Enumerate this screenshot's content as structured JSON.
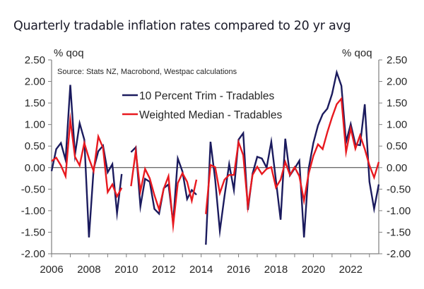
{
  "chart_data": {
    "type": "line",
    "title": "Quarterly tradable inflation rates compared to 20 yr avg",
    "source": "Source: Stats NZ, Macrobond, Westpac calculations",
    "ylabel_left": "% qoq",
    "ylabel_right": "% qoq",
    "xlabel": "",
    "ylim": [
      -2.0,
      2.5
    ],
    "xlim": [
      2006.0,
      2023.5
    ],
    "y_ticks": [
      2.5,
      2.0,
      1.5,
      1.0,
      0.5,
      0.0,
      -0.5,
      -1.0,
      -1.5,
      -2.0
    ],
    "y_tick_labels": [
      "2.50",
      "2.00",
      "1.50",
      "1.00",
      "0.50",
      "0.00",
      "-0.50",
      "-1.00",
      "-1.50",
      "-2.00"
    ],
    "x_tick_labels": [
      "2006",
      "2008",
      "2010",
      "2012",
      "2014",
      "2016",
      "2018",
      "2020",
      "2022"
    ],
    "x_tick_values": [
      2006,
      2008,
      2010,
      2012,
      2014,
      2016,
      2018,
      2020,
      2022
    ],
    "grid": false,
    "zero_line": true,
    "legend_position": "top-center",
    "x_start": 2006.0,
    "x_step": 0.25,
    "series": [
      {
        "name": "10 Percent Trim - Tradables",
        "color": "#1b1b5e",
        "values": [
          -0.08,
          0.43,
          0.57,
          0.18,
          1.92,
          0.3,
          1.03,
          0.65,
          -1.62,
          -0.03,
          0.38,
          0.51,
          -0.11,
          0.08,
          -1.06,
          -0.15,
          null,
          0.36,
          0.47,
          -0.9,
          -0.26,
          -0.33,
          -0.96,
          -1.07,
          -0.48,
          -0.39,
          -1.28,
          0.21,
          -0.09,
          -0.73,
          -0.52,
          -0.63,
          null,
          -1.79,
          0.6,
          -0.28,
          -1.47,
          -0.66,
          0.08,
          -0.52,
          0.65,
          0.8,
          -0.98,
          -0.14,
          0.25,
          0.21,
          0.0,
          0.6,
          -0.3,
          -1.21,
          0.67,
          -0.18,
          -0.02,
          0.16,
          -1.62,
          -0.02,
          0.57,
          0.98,
          1.24,
          1.37,
          1.71,
          2.21,
          1.9,
          0.59,
          1.01,
          0.54,
          0.52,
          1.47,
          -0.33,
          -0.96,
          -0.39
        ]
      },
      {
        "name": "Weighted Median - Tradables",
        "color": "#e8191f",
        "values": [
          0.15,
          0.23,
          0.05,
          -0.2,
          1.11,
          0.25,
          0.05,
          0.57,
          0.21,
          -0.08,
          0.72,
          0.46,
          -0.57,
          -0.39,
          -0.67,
          -0.47,
          null,
          -0.43,
          0.38,
          -0.55,
          -0.03,
          -0.25,
          -0.64,
          -0.97,
          -0.49,
          -0.2,
          -1.34,
          -0.36,
          -0.13,
          -0.33,
          -0.77,
          -0.28,
          null,
          -1.08,
          0.06,
          0.01,
          -0.59,
          -0.28,
          -0.17,
          -0.17,
          0.59,
          0.29,
          -0.9,
          -0.17,
          0.02,
          -0.15,
          -0.03,
          0.01,
          -0.46,
          -0.28,
          0.13,
          -0.17,
          0.01,
          -0.2,
          -0.77,
          -0.14,
          0.27,
          0.54,
          0.43,
          0.82,
          1.17,
          1.47,
          1.6,
          0.36,
          0.91,
          0.44,
          0.75,
          0.43,
          0.05,
          -0.23,
          0.13
        ]
      }
    ]
  }
}
